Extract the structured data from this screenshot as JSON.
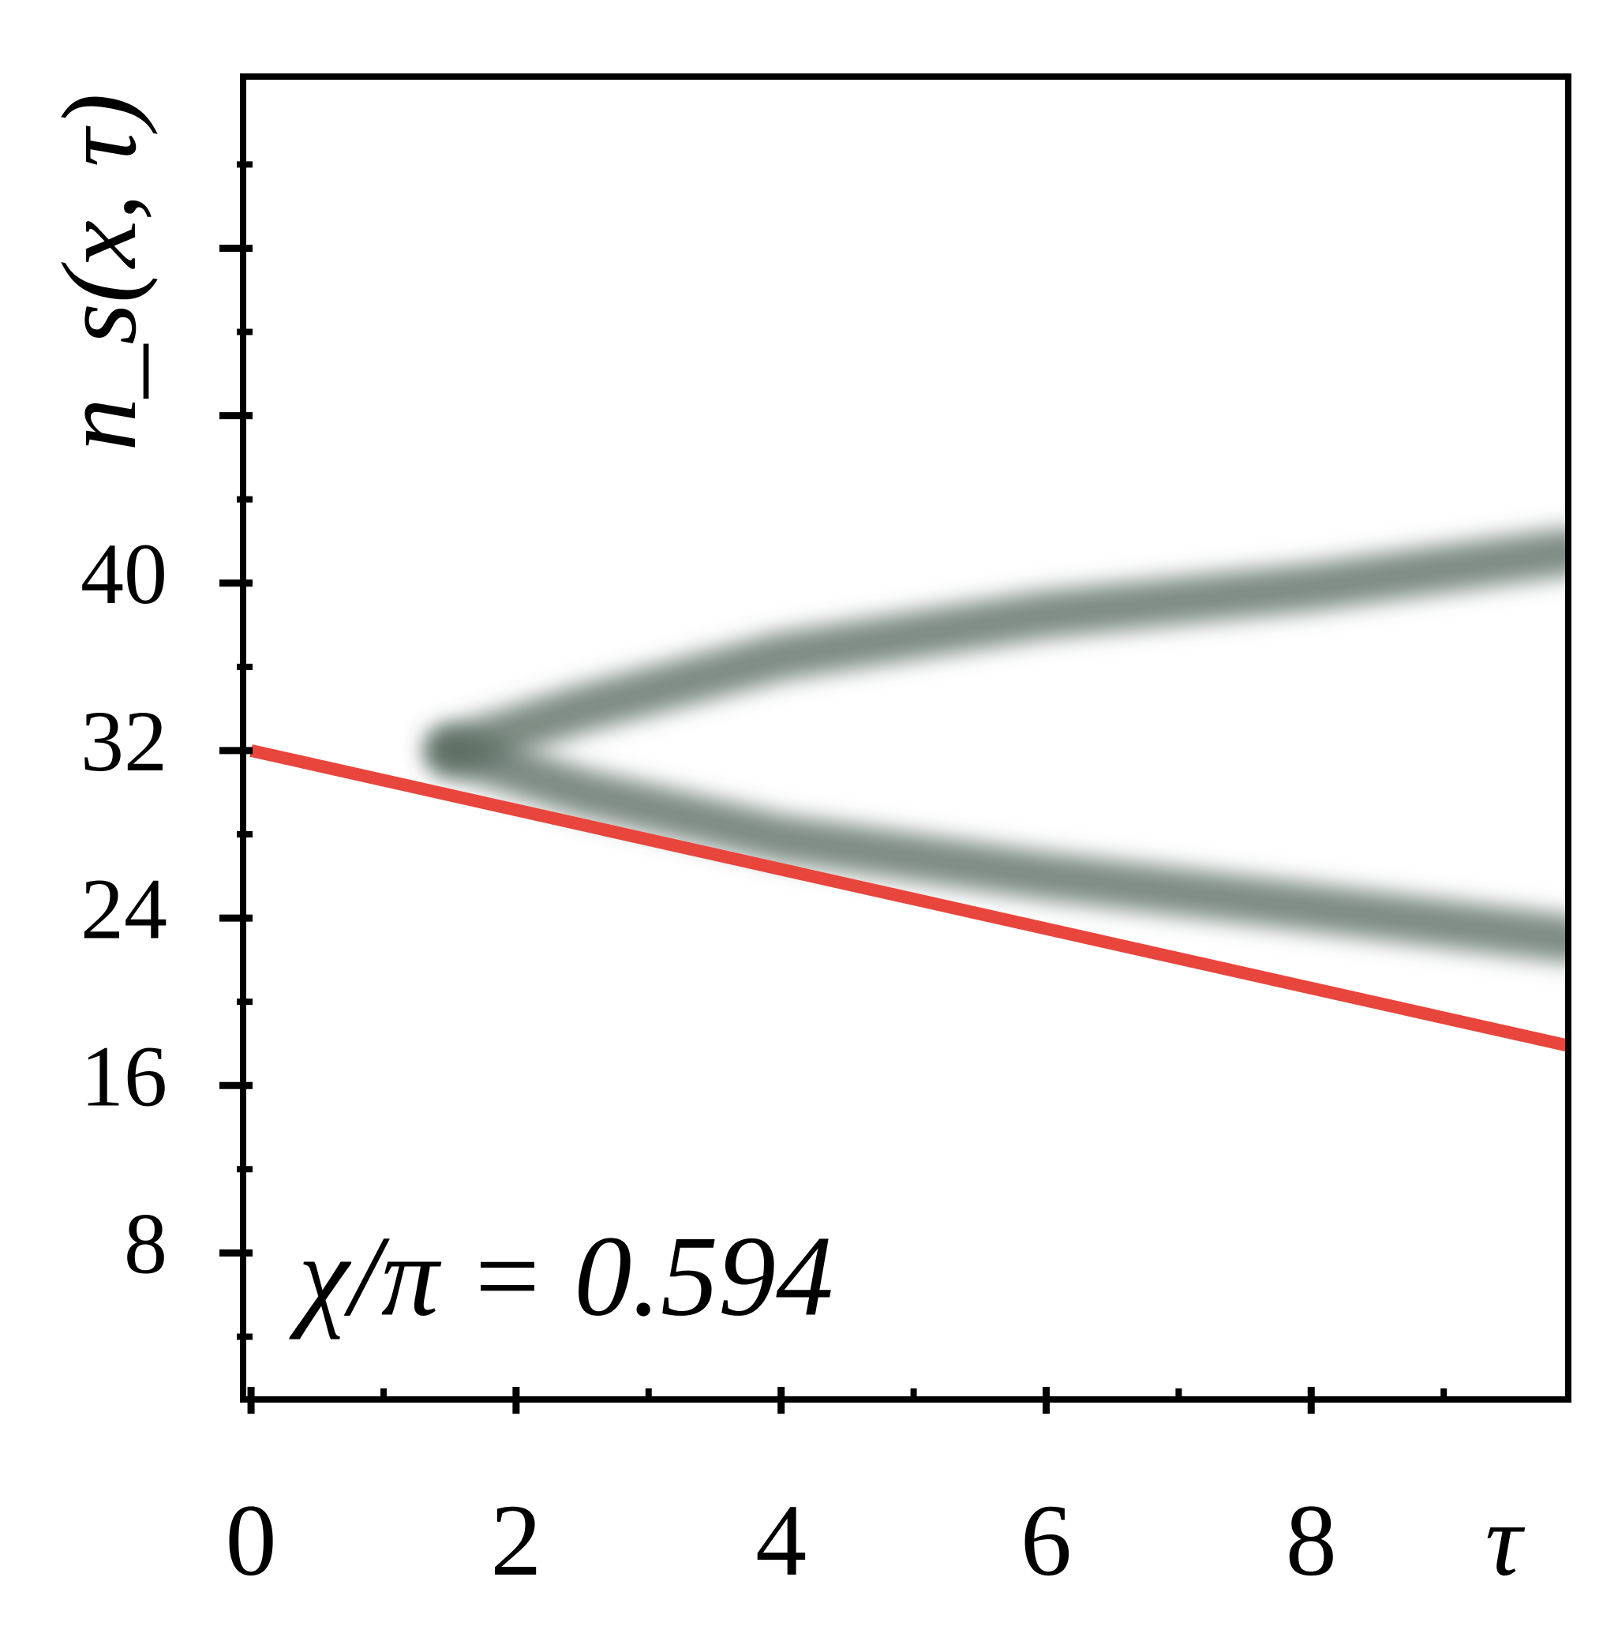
{
  "chart_data": {
    "type": "line",
    "annotation": "χ/π = 0.594",
    "x_label": "τ",
    "y_label": "n_s(x, τ)",
    "xlim": [
      -0.06,
      9.94
    ],
    "ylim": [
      1,
      64.2
    ],
    "xticks": [
      0,
      2,
      4,
      6,
      8
    ],
    "xminor": [
      1,
      3,
      5,
      7,
      9
    ],
    "yticks": [
      8,
      16,
      24,
      32,
      40,
      {
        "value": 48,
        "label": null
      },
      {
        "value": 56,
        "label": null
      }
    ],
    "yminor": [
      4,
      12,
      20,
      28,
      36,
      44,
      52,
      60
    ],
    "series": [
      {
        "color": "#e8453c",
        "x": [
          0,
          9.94
        ],
        "values": [
          32,
          17.9
        ]
      }
    ],
    "density": {
      "color": "#51665c",
      "peak_color": "#000000",
      "ridges": [
        {
          "x": [
            1.5,
            2.5,
            4,
            6,
            8,
            9.94
          ],
          "values": [
            32,
            34,
            36.5,
            38.5,
            39.8,
            41.5
          ]
        },
        {
          "x": [
            1.5,
            2.5,
            4,
            6,
            8,
            9.94
          ],
          "values": [
            32,
            30,
            27.8,
            26,
            24.5,
            23
          ]
        }
      ],
      "peak": {
        "x": [
          0,
          1.7
        ],
        "values": [
          32,
          32
        ]
      }
    }
  }
}
